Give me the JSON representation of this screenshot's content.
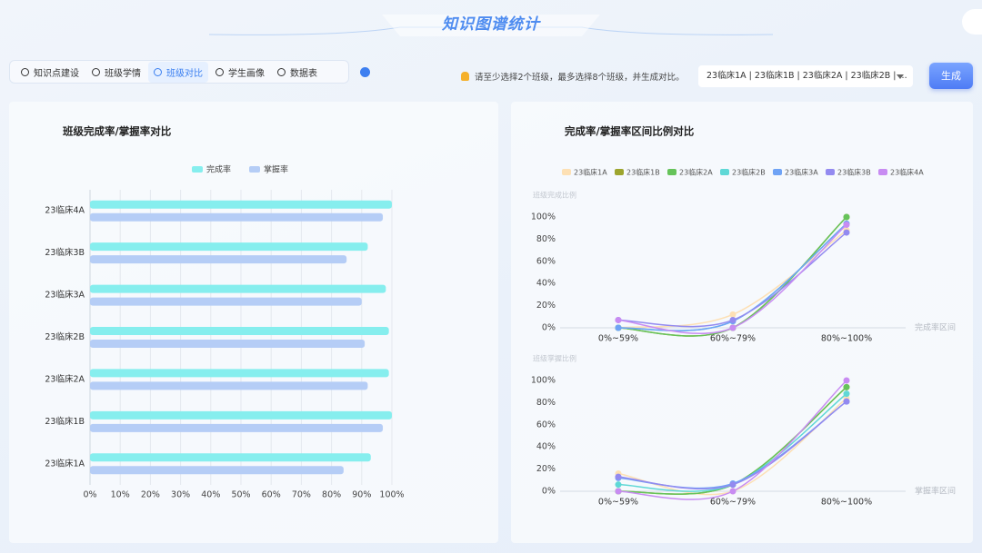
{
  "header": {
    "title": "知识图谱统计"
  },
  "tabs": [
    "知识点建设",
    "班级学情",
    "班级对比",
    "学生画像",
    "数据表"
  ],
  "active_tab": "班级对比",
  "notice": "请至少选择2个班级，最多选择8个班级，并生成对比。",
  "class_select": "23临床1A | 23临床1B | 23临床2A | 23临床2B | ...",
  "generate_button": "生成",
  "chart_data": [
    {
      "type": "bar",
      "orientation": "horizontal",
      "title": "班级完成率/掌握率对比",
      "categories": [
        "23临床4A",
        "23临床3B",
        "23临床3A",
        "23临床2B",
        "23临床2A",
        "23临床1B",
        "23临床1A"
      ],
      "series": [
        {
          "name": "完成率",
          "color": "#86eeee",
          "values": [
            100,
            92,
            98,
            99,
            99,
            100,
            93
          ]
        },
        {
          "name": "掌握率",
          "color": "#b5cdf6",
          "values": [
            97,
            85,
            90,
            91,
            92,
            97,
            84
          ]
        }
      ],
      "xlim": [
        0,
        100
      ],
      "xticks": [
        {
          "value": 0,
          "label": "0%"
        },
        {
          "value": 10,
          "label": "10%"
        },
        {
          "value": 20,
          "label": "20%"
        },
        {
          "value": 30,
          "label": "30%"
        },
        {
          "value": 40,
          "label": "40%"
        },
        {
          "value": 50,
          "label": "50%"
        },
        {
          "value": 60,
          "label": "60%"
        },
        {
          "value": 70,
          "label": "70%"
        },
        {
          "value": 80,
          "label": "80%"
        },
        {
          "value": 90,
          "label": "90%"
        },
        {
          "value": 100,
          "label": "100%"
        }
      ],
      "grid": true
    },
    {
      "type": "line",
      "title": "完成率/掌握率区间比例对比",
      "categories": [
        "0%~59%",
        "60%~79%",
        "80%~100%"
      ],
      "series": [
        {
          "name": "23临床1A",
          "color": "#fde0b4"
        },
        {
          "name": "23临床1B",
          "color": "#9da52e"
        },
        {
          "name": "23临床2A",
          "color": "#66c35a"
        },
        {
          "name": "23临床2B",
          "color": "#5fd8d6"
        },
        {
          "name": "23临床3A",
          "color": "#6fa3f5"
        },
        {
          "name": "23临床3B",
          "color": "#938af0"
        },
        {
          "name": "23临床4A",
          "color": "#c88cf2"
        }
      ],
      "panels": [
        {
          "ylabel": "班级完成比例",
          "xlabel": "完成率区间",
          "values": [
            [
              0,
              12,
              88
            ],
            [
              0,
              0,
              100
            ],
            [
              0,
              0,
              100
            ],
            [
              0,
              6,
              94
            ],
            [
              0,
              6,
              94
            ],
            [
              7,
              7,
              86
            ],
            [
              7,
              0,
              93
            ]
          ]
        },
        {
          "ylabel": "班级掌握比例",
          "xlabel": "掌握率区间",
          "values": [
            [
              16,
              0,
              84
            ],
            [
              0,
              6,
              94
            ],
            [
              0,
              6,
              94
            ],
            [
              6,
              6,
              88
            ],
            [
              12,
              7,
              81
            ],
            [
              13,
              6,
              81
            ],
            [
              0,
              0,
              100
            ]
          ]
        }
      ],
      "ylim": [
        0,
        100
      ],
      "yticks": [
        {
          "value": 0,
          "label": "0%"
        },
        {
          "value": 20,
          "label": "20%"
        },
        {
          "value": 40,
          "label": "40%"
        },
        {
          "value": 60,
          "label": "60%"
        },
        {
          "value": 80,
          "label": "80%"
        },
        {
          "value": 100,
          "label": "100%"
        }
      ]
    }
  ]
}
